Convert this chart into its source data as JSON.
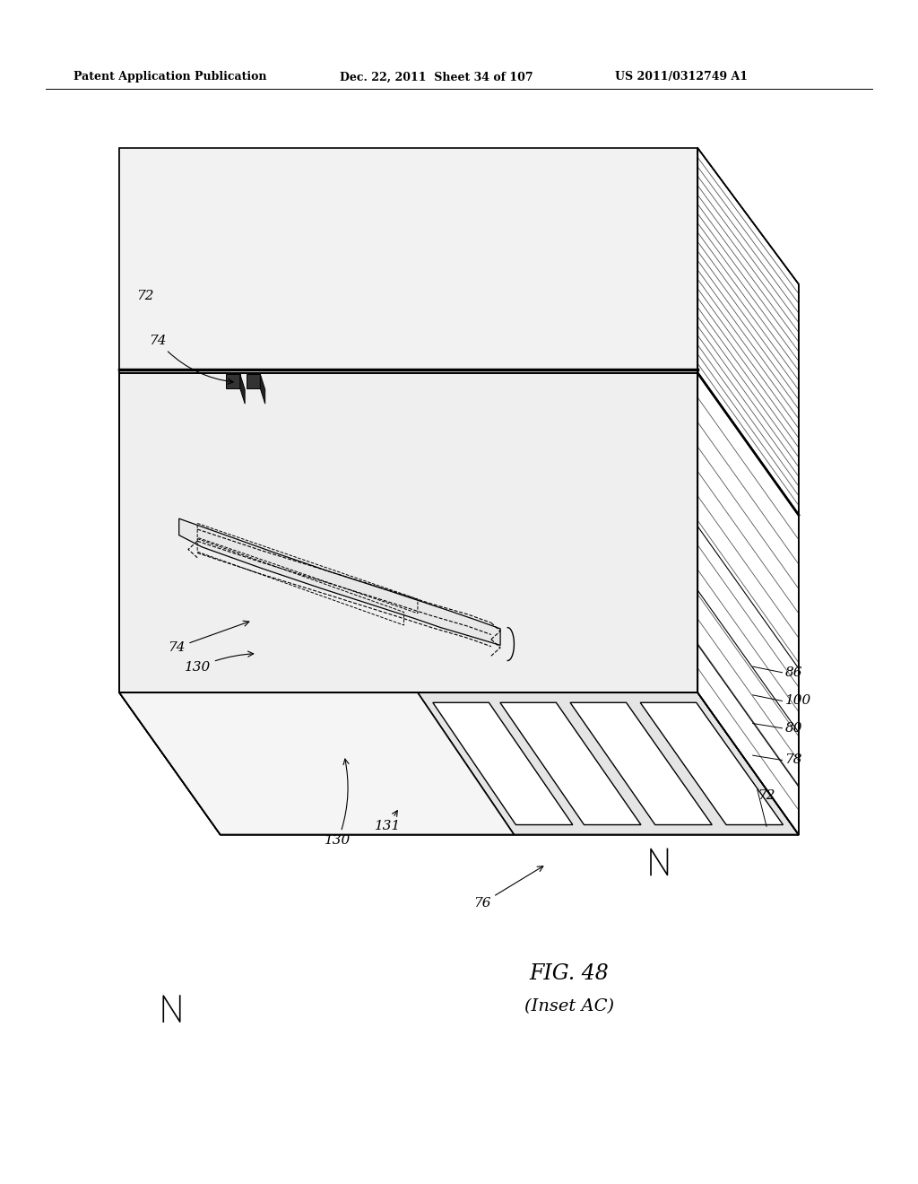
{
  "header_left": "Patent Application Publication",
  "header_mid": "Dec. 22, 2011  Sheet 34 of 107",
  "header_right": "US 2011/0312749 A1",
  "fig_label": "FIG. 48",
  "fig_sublabel": "(Inset AC)",
  "bg_color": "#ffffff",
  "line_color": "#000000"
}
